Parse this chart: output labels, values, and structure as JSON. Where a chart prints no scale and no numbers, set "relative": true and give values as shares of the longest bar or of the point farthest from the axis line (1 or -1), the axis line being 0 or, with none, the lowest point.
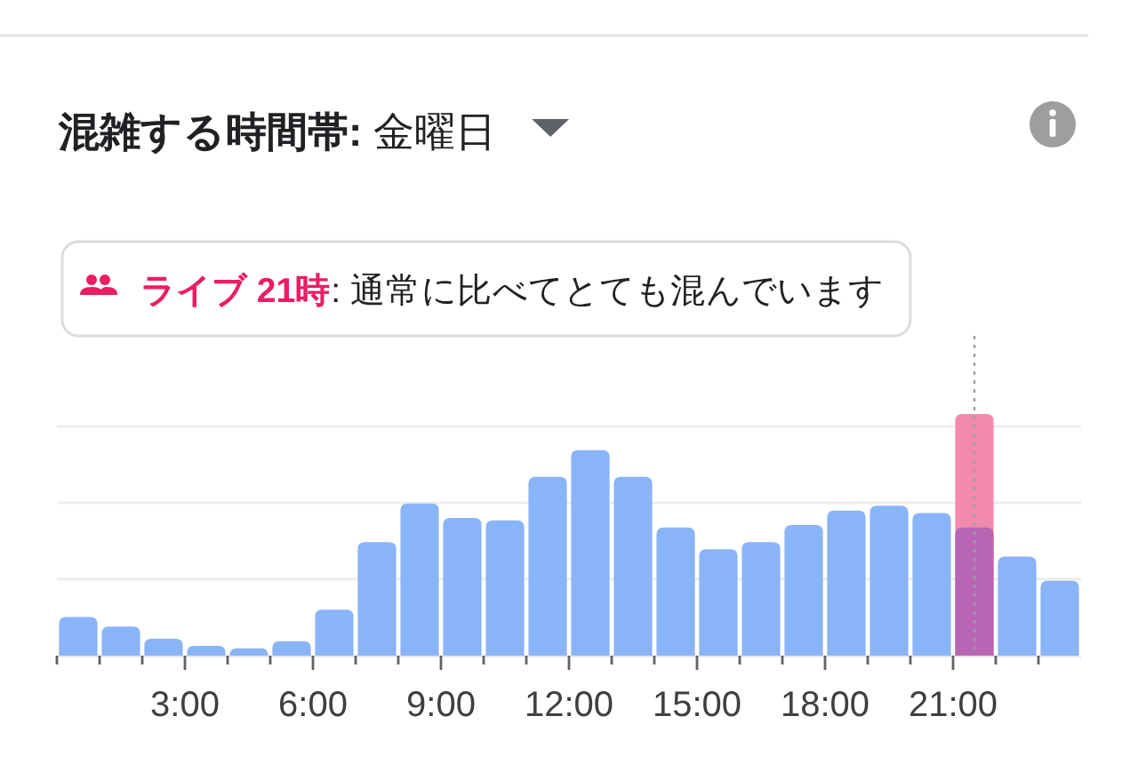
{
  "chart_data": {
    "type": "bar",
    "title": "**混雑する時間帯:** 金曜日",
    "annotations": [
      "**ライブ 21時**: 通常に比べてとても混んでいます"
    ],
    "x": [
      0.5,
      1.5,
      2.5,
      3.5,
      4.5,
      5.5,
      6.5,
      7.5,
      8.5,
      9.5,
      10.5,
      11.5,
      12.5,
      13.5,
      14.5,
      15.5,
      16.5,
      17.5,
      18.5,
      19.5,
      20.5,
      21.5,
      22.5,
      23.5
    ],
    "relative": true,
    "xlim": [
      0,
      24
    ],
    "xticks": [
      {
        "value": 0,
        "label": null
      },
      {
        "value": 1,
        "label": null
      },
      {
        "value": 2,
        "label": null
      },
      {
        "value": 3,
        "label": "3:00"
      },
      {
        "value": 4,
        "label": null
      },
      {
        "value": 5,
        "label": null
      },
      {
        "value": 6,
        "label": "6:00"
      },
      {
        "value": 7,
        "label": null
      },
      {
        "value": 8,
        "label": null
      },
      {
        "value": 9,
        "label": "9:00"
      },
      {
        "value": 10,
        "label": null
      },
      {
        "value": 11,
        "label": null
      },
      {
        "value": 12,
        "label": "12:00"
      },
      {
        "value": 13,
        "label": null
      },
      {
        "value": 14,
        "label": null
      },
      {
        "value": 15,
        "label": "15:00"
      },
      {
        "value": 16,
        "label": null
      },
      {
        "value": 17,
        "label": null
      },
      {
        "value": 18,
        "label": "18:00"
      },
      {
        "value": 19,
        "label": null
      },
      {
        "value": 20,
        "label": null
      },
      {
        "value": 21,
        "label": "21:00"
      },
      {
        "value": 22,
        "label": null
      },
      {
        "value": 23,
        "label": null
      }
    ],
    "series": [
      {
        "color": "#f28bab",
        "values": [
          null,
          null,
          null,
          null,
          null,
          null,
          null,
          null,
          null,
          null,
          null,
          null,
          null,
          null,
          null,
          null,
          null,
          null,
          null,
          null,
          null,
          1,
          null,
          null
        ]
      },
      {
        "colors": [
          "#8ab4f8",
          "#8ab4f8",
          "#8ab4f8",
          "#8ab4f8",
          "#8ab4f8",
          "#8ab4f8",
          "#8ab4f8",
          "#8ab4f8",
          "#8ab4f8",
          "#8ab4f8",
          "#8ab4f8",
          "#8ab4f8",
          "#8ab4f8",
          "#8ab4f8",
          "#8ab4f8",
          "#8ab4f8",
          "#8ab4f8",
          "#8ab4f8",
          "#8ab4f8",
          "#8ab4f8",
          "#8ab4f8",
          "#b866b4",
          "#8ab4f8",
          "#8ab4f8"
        ],
        "values": [
          0.16,
          0.12,
          0.07,
          0.04,
          0.03,
          0.06,
          0.19,
          0.47,
          0.63,
          0.57,
          0.56,
          0.74,
          0.85,
          0.74,
          0.53,
          0.44,
          0.47,
          0.54,
          0.6,
          0.62,
          0.59,
          0.53,
          0.41,
          0.31
        ]
      }
    ],
    "ref_lines": [
      {
        "axis": "x",
        "value": 21.5,
        "color": "#9aa0a6",
        "line_style": "dotted"
      }
    ],
    "grid": "y"
  }
}
